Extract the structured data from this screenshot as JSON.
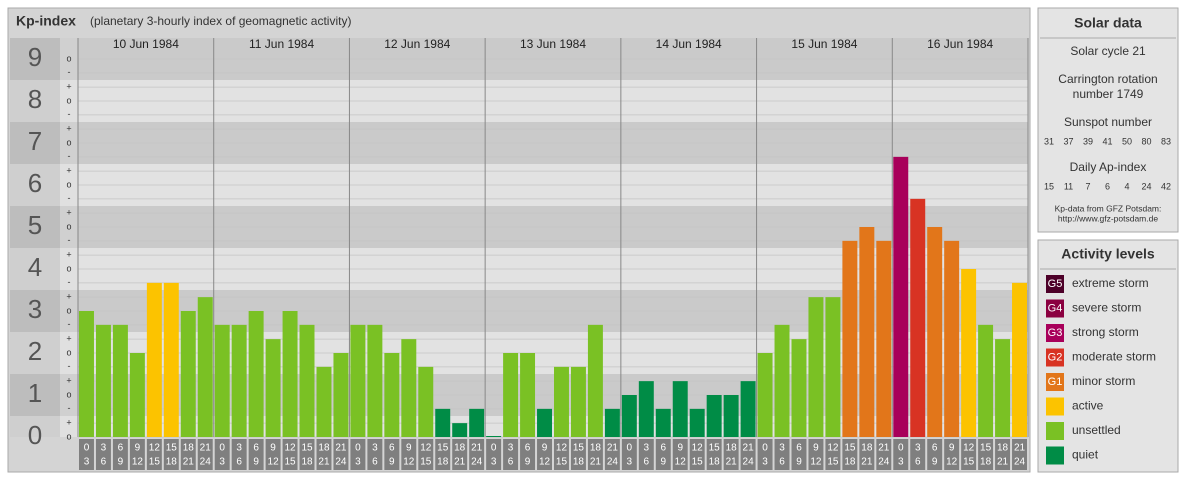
{
  "chart_data": {
    "type": "bar",
    "title": "Kp-index",
    "subtitle": "(planetary 3-hourly index of geomagnetic activity)",
    "days": [
      "10 Jun 1984",
      "11 Jun 1984",
      "12 Jun 1984",
      "13 Jun 1984",
      "14 Jun 1984",
      "15 Jun 1984",
      "16 Jun 1984"
    ],
    "slots": [
      [
        "0",
        "3"
      ],
      [
        "3",
        "6"
      ],
      [
        "6",
        "9"
      ],
      [
        "9",
        "12"
      ],
      [
        "12",
        "15"
      ],
      [
        "15",
        "18"
      ],
      [
        "18",
        "21"
      ],
      [
        "21",
        "24"
      ]
    ],
    "values": [
      3,
      2.67,
      2.67,
      2,
      3.67,
      3.67,
      3,
      3.33,
      2.67,
      2.67,
      3,
      2.33,
      3,
      2.67,
      1.67,
      2,
      2.67,
      2.67,
      2,
      2.33,
      1.67,
      0.67,
      0.33,
      0.67,
      0,
      2,
      2,
      0.67,
      1.67,
      1.67,
      2.67,
      0.67,
      1,
      1.33,
      0.67,
      1.33,
      0.67,
      1,
      1,
      1.33,
      2,
      2.67,
      2.33,
      3.33,
      3.33,
      4.67,
      5,
      4.67,
      6.67,
      5.67,
      5,
      4.67,
      4,
      2.67,
      2.33,
      3.67
    ],
    "colors": [
      "#7ac124",
      "#7ac124",
      "#7ac124",
      "#7ac124",
      "#fcc300",
      "#fcc300",
      "#7ac124",
      "#7ac124",
      "#7ac124",
      "#7ac124",
      "#7ac124",
      "#7ac124",
      "#7ac124",
      "#7ac124",
      "#7ac124",
      "#7ac124",
      "#7ac124",
      "#7ac124",
      "#7ac124",
      "#7ac124",
      "#7ac124",
      "#008c46",
      "#008c46",
      "#008c46",
      "#008c46",
      "#7ac124",
      "#7ac124",
      "#008c46",
      "#7ac124",
      "#7ac124",
      "#7ac124",
      "#008c46",
      "#008c46",
      "#008c46",
      "#008c46",
      "#008c46",
      "#008c46",
      "#008c46",
      "#008c46",
      "#008c46",
      "#7ac124",
      "#7ac124",
      "#7ac124",
      "#7ac124",
      "#7ac124",
      "#e2761a",
      "#e2761a",
      "#e2761a",
      "#a8005a",
      "#d83323",
      "#e2761a",
      "#e2761a",
      "#fcc300",
      "#7ac124",
      "#7ac124",
      "#fcc300"
    ],
    "ylim": [
      0,
      9.5
    ],
    "yticks": [
      0,
      1,
      2,
      3,
      4,
      5,
      6,
      7,
      8,
      9
    ],
    "yminor_ticks": [
      {
        "value": 0,
        "label": "o"
      },
      {
        "value": 0.33,
        "label": "+"
      },
      {
        "value": 0.67,
        "label": "-"
      },
      {
        "value": 1,
        "label": "o"
      },
      {
        "value": 1.33,
        "label": "+"
      },
      {
        "value": 1.67,
        "label": "-"
      },
      {
        "value": 2,
        "label": "o"
      },
      {
        "value": 2.33,
        "label": "+"
      },
      {
        "value": 2.67,
        "label": "-"
      },
      {
        "value": 3,
        "label": "o"
      },
      {
        "value": 3.33,
        "label": "+"
      },
      {
        "value": 3.67,
        "label": "-"
      },
      {
        "value": 4,
        "label": "o"
      },
      {
        "value": 4.33,
        "label": "+"
      },
      {
        "value": 4.67,
        "label": "-"
      },
      {
        "value": 5,
        "label": "o"
      },
      {
        "value": 5.33,
        "label": "+"
      },
      {
        "value": 5.67,
        "label": "-"
      },
      {
        "value": 6,
        "label": "o"
      },
      {
        "value": 6.33,
        "label": "+"
      },
      {
        "value": 6.67,
        "label": "-"
      },
      {
        "value": 7,
        "label": "o"
      },
      {
        "value": 7.33,
        "label": "+"
      },
      {
        "value": 7.67,
        "label": "-"
      },
      {
        "value": 8,
        "label": "o"
      },
      {
        "value": 8.33,
        "label": "+"
      },
      {
        "value": 8.67,
        "label": "-"
      },
      {
        "value": 9,
        "label": "o"
      }
    ],
    "grid": true
  },
  "solar_data": {
    "title": "Solar data",
    "cycle": "Solar cycle 21",
    "carrington": [
      "Carrington rotation",
      "number 1749"
    ],
    "sunspot_label": "Sunspot number",
    "sunspot": [
      31,
      37,
      39,
      41,
      50,
      80,
      83
    ],
    "ap_label": "Daily Ap-index",
    "ap": [
      15,
      11,
      7,
      6,
      4,
      24,
      42
    ],
    "source": [
      "Kp-data from GFZ Potsdam:",
      "http://www.gfz-potsdam.de"
    ]
  },
  "activity_levels": {
    "title": "Activity levels",
    "items": [
      {
        "badge": "G5",
        "label": "extreme storm",
        "color": "#4d0028"
      },
      {
        "badge": "G4",
        "label": "severe storm",
        "color": "#8b0040"
      },
      {
        "badge": "G3",
        "label": "strong storm",
        "color": "#a8005a"
      },
      {
        "badge": "G2",
        "label": "moderate storm",
        "color": "#d83323"
      },
      {
        "badge": "G1",
        "label": "minor storm",
        "color": "#e2761a"
      },
      {
        "label": "active",
        "color": "#fcc300"
      },
      {
        "label": "unsettled",
        "color": "#7ac124"
      },
      {
        "label": "quiet",
        "color": "#008c46"
      }
    ]
  }
}
